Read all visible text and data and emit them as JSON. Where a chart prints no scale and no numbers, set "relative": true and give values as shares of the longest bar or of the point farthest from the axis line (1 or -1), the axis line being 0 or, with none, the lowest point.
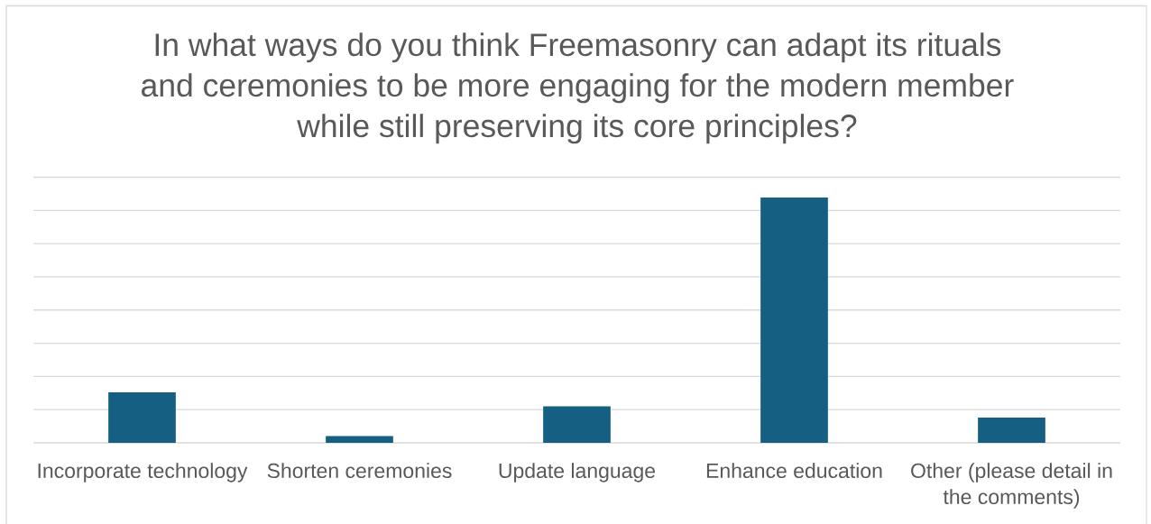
{
  "chart_data": {
    "type": "bar",
    "title": "In what ways do you think Freemasonry can adapt its rituals and ceremonies to be more engaging for the modern member while still preserving its core principles?",
    "categories": [
      "Incorporate technology",
      "Shorten ceremonies",
      "Update language",
      "Enhance education",
      "Other (please detail in the comments)"
    ],
    "values": [
      0.206,
      0.028,
      0.149,
      1,
      0.103
    ],
    "color": "#156082",
    "relative": true,
    "grid": "y"
  }
}
